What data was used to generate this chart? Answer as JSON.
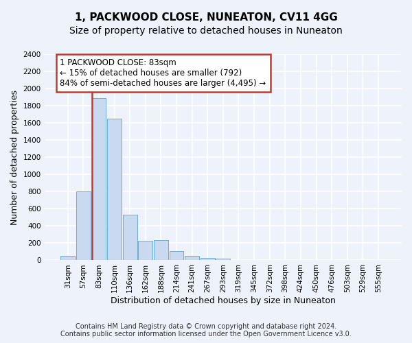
{
  "title": "1, PACKWOOD CLOSE, NUNEATON, CV11 4GG",
  "subtitle": "Size of property relative to detached houses in Nuneaton",
  "xlabel": "Distribution of detached houses by size in Nuneaton",
  "ylabel": "Number of detached properties",
  "bin_labels": [
    "31sqm",
    "57sqm",
    "83sqm",
    "110sqm",
    "136sqm",
    "162sqm",
    "188sqm",
    "214sqm",
    "241sqm",
    "267sqm",
    "293sqm",
    "319sqm",
    "345sqm",
    "372sqm",
    "398sqm",
    "424sqm",
    "450sqm",
    "476sqm",
    "503sqm",
    "529sqm",
    "555sqm"
  ],
  "bar_values": [
    50,
    800,
    1890,
    1650,
    530,
    230,
    235,
    105,
    50,
    30,
    20,
    0,
    0,
    0,
    0,
    0,
    0,
    0,
    0,
    0,
    0
  ],
  "bar_color": "#c8d9f0",
  "bar_edge_color": "#6baed6",
  "highlight_bar_index": 2,
  "highlight_color": "#c0392b",
  "annotation_line1": "1 PACKWOOD CLOSE: 83sqm",
  "annotation_line2": "← 15% of detached houses are smaller (792)",
  "annotation_line3": "84% of semi-detached houses are larger (4,495) →",
  "annotation_box_color": "#ffffff",
  "annotation_box_edge": "#c0392b",
  "ylim": [
    0,
    2400
  ],
  "yticks": [
    0,
    200,
    400,
    600,
    800,
    1000,
    1200,
    1400,
    1600,
    1800,
    2000,
    2200,
    2400
  ],
  "footer_line1": "Contains HM Land Registry data © Crown copyright and database right 2024.",
  "footer_line2": "Contains public sector information licensed under the Open Government Licence v3.0.",
  "background_color": "#eef2fb",
  "grid_color": "#ffffff",
  "title_fontsize": 11,
  "subtitle_fontsize": 10,
  "axis_label_fontsize": 9,
  "tick_fontsize": 7.5,
  "annotation_fontsize": 8.5,
  "footer_fontsize": 7
}
